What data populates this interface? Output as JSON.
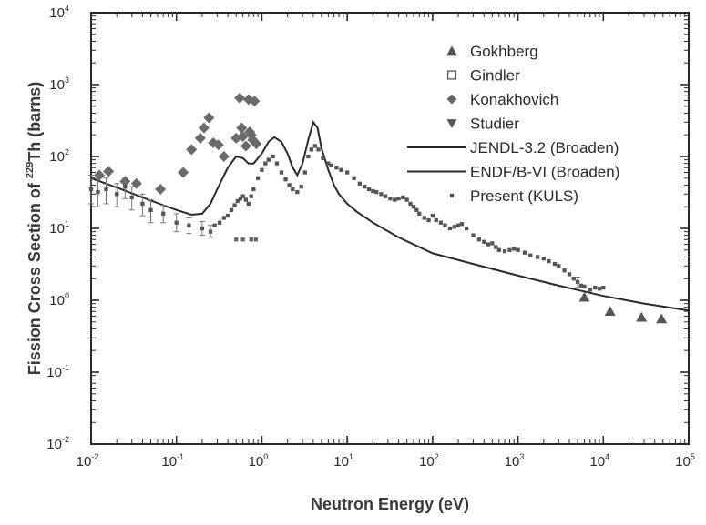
{
  "chart_data": {
    "type": "scatter",
    "xlabel": "Neutron Energy (eV)",
    "ylabel_parts": {
      "prefix": "Fission Cross Section of ",
      "superscript": "229",
      "suffix": "Th (barns)"
    },
    "xscale": "log",
    "yscale": "log",
    "xlim": [
      0.01,
      100000
    ],
    "ylim": [
      0.01,
      10000
    ],
    "x_ticks": [
      {
        "base": "10",
        "exp": "-2",
        "value": 0.01
      },
      {
        "base": "10",
        "exp": "-1",
        "value": 0.1
      },
      {
        "base": "10",
        "exp": "0",
        "value": 1
      },
      {
        "base": "10",
        "exp": "1",
        "value": 10
      },
      {
        "base": "10",
        "exp": "2",
        "value": 100
      },
      {
        "base": "10",
        "exp": "3",
        "value": 1000
      },
      {
        "base": "10",
        "exp": "4",
        "value": 10000
      },
      {
        "base": "10",
        "exp": "5",
        "value": 100000
      }
    ],
    "y_ticks": [
      {
        "base": "10",
        "exp": "-2",
        "value": 0.01
      },
      {
        "base": "10",
        "exp": "-1",
        "value": 0.1
      },
      {
        "base": "10",
        "exp": "0",
        "value": 1
      },
      {
        "base": "10",
        "exp": "1",
        "value": 10
      },
      {
        "base": "10",
        "exp": "2",
        "value": 100
      },
      {
        "base": "10",
        "exp": "3",
        "value": 1000
      },
      {
        "base": "10",
        "exp": "4",
        "value": 10000
      }
    ],
    "grid": false,
    "legend_position": "top-right",
    "series": [
      {
        "name": "Gokhberg",
        "marker": "triangle-up",
        "color": "#555555",
        "points": [
          [
            6000,
            1.1
          ],
          [
            12000,
            0.7
          ],
          [
            28000,
            0.58
          ],
          [
            48000,
            0.55
          ]
        ]
      },
      {
        "name": "Gindler",
        "marker": "square-open",
        "color": "#555555",
        "points": []
      },
      {
        "name": "Konakhovich",
        "marker": "diamond",
        "color": "#6a6a6a",
        "points": [
          [
            0.0125,
            55
          ],
          [
            0.016,
            62
          ],
          [
            0.025,
            45
          ],
          [
            0.034,
            42
          ],
          [
            0.065,
            35
          ],
          [
            0.12,
            60
          ],
          [
            0.15,
            125
          ],
          [
            0.19,
            180
          ],
          [
            0.21,
            250
          ],
          [
            0.24,
            345
          ],
          [
            0.27,
            155
          ],
          [
            0.31,
            145
          ],
          [
            0.36,
            100
          ],
          [
            0.5,
            180
          ],
          [
            0.55,
            650
          ],
          [
            0.58,
            250
          ],
          [
            0.6,
            190
          ],
          [
            0.65,
            140
          ],
          [
            0.7,
            620
          ],
          [
            0.72,
            220
          ],
          [
            0.75,
            200
          ],
          [
            0.78,
            170
          ],
          [
            0.82,
            590
          ],
          [
            0.86,
            150
          ]
        ]
      },
      {
        "name": "Studier",
        "marker": "triangle-down",
        "color": "#555555",
        "points": []
      },
      {
        "name": "Present (KULS)",
        "marker": "square-small",
        "color": "#555555",
        "points": [
          [
            0.01,
            35
          ],
          [
            0.012,
            32
          ],
          [
            0.015,
            35
          ],
          [
            0.02,
            30
          ],
          [
            0.025,
            38
          ],
          [
            0.03,
            27
          ],
          [
            0.04,
            22
          ],
          [
            0.05,
            18
          ],
          [
            0.07,
            16
          ],
          [
            0.1,
            12
          ],
          [
            0.14,
            11
          ],
          [
            0.2,
            10
          ],
          [
            0.25,
            9
          ],
          [
            0.28,
            11
          ],
          [
            0.32,
            12
          ],
          [
            0.36,
            14
          ],
          [
            0.4,
            15
          ],
          [
            0.44,
            18
          ],
          [
            0.48,
            21
          ],
          [
            0.52,
            24
          ],
          [
            0.56,
            26
          ],
          [
            0.6,
            28
          ],
          [
            0.65,
            25
          ],
          [
            0.7,
            22
          ],
          [
            0.75,
            28
          ],
          [
            0.8,
            35
          ],
          [
            0.9,
            50
          ],
          [
            1.0,
            65
          ],
          [
            1.1,
            80
          ],
          [
            1.2,
            90
          ],
          [
            1.35,
            100
          ],
          [
            1.5,
            80
          ],
          [
            1.7,
            60
          ],
          [
            1.9,
            48
          ],
          [
            2.1,
            40
          ],
          [
            2.3,
            35
          ],
          [
            2.6,
            32
          ],
          [
            2.9,
            38
          ],
          [
            3.2,
            60
          ],
          [
            3.5,
            100
          ],
          [
            3.8,
            125
          ],
          [
            4.2,
            140
          ],
          [
            4.6,
            125
          ],
          [
            5.2,
            95
          ],
          [
            6.0,
            80
          ],
          [
            6.5,
            75
          ],
          [
            7.5,
            70
          ],
          [
            8.5,
            65
          ],
          [
            10,
            60
          ],
          [
            12,
            50
          ],
          [
            14,
            42
          ],
          [
            16,
            38
          ],
          [
            18,
            35
          ],
          [
            20,
            33
          ],
          [
            22,
            32
          ],
          [
            25,
            30
          ],
          [
            28,
            28
          ],
          [
            32,
            26
          ],
          [
            36,
            25
          ],
          [
            40,
            26
          ],
          [
            45,
            27
          ],
          [
            50,
            25
          ],
          [
            55,
            22
          ],
          [
            60,
            20
          ],
          [
            65,
            18
          ],
          [
            70,
            16
          ],
          [
            80,
            14
          ],
          [
            90,
            13
          ],
          [
            100,
            15
          ],
          [
            110,
            13
          ],
          [
            125,
            12
          ],
          [
            140,
            11
          ],
          [
            160,
            10
          ],
          [
            180,
            10.5
          ],
          [
            200,
            11
          ],
          [
            220,
            11.5
          ],
          [
            250,
            10
          ],
          [
            300,
            8
          ],
          [
            350,
            7
          ],
          [
            400,
            6.5
          ],
          [
            450,
            6
          ],
          [
            500,
            6.2
          ],
          [
            550,
            5.5
          ],
          [
            600,
            5
          ],
          [
            700,
            4.8
          ],
          [
            800,
            5
          ],
          [
            900,
            5.2
          ],
          [
            1000,
            5
          ],
          [
            1200,
            4.6
          ],
          [
            1400,
            4.2
          ],
          [
            1700,
            4
          ],
          [
            2000,
            3.8
          ],
          [
            2300,
            3.5
          ],
          [
            2700,
            3.2
          ],
          [
            3000,
            3
          ],
          [
            3500,
            2.6
          ],
          [
            4000,
            2.3
          ],
          [
            4500,
            2.0
          ],
          [
            5000,
            1.8
          ],
          [
            5500,
            1.6
          ],
          [
            6000,
            1.55
          ],
          [
            7000,
            1.4
          ],
          [
            8000,
            1.5
          ],
          [
            9000,
            1.45
          ],
          [
            10000,
            1.5
          ]
        ]
      }
    ],
    "extra_points": [
      [
        0.5,
        7
      ],
      [
        0.6,
        7
      ],
      [
        0.75,
        7
      ],
      [
        0.85,
        7
      ]
    ],
    "curves": [
      {
        "name": "JENDL-3.2 (Broaden)",
        "color": "#2a2a2a",
        "points": [
          [
            0.01,
            50
          ],
          [
            0.02,
            37
          ],
          [
            0.04,
            27
          ],
          [
            0.07,
            21
          ],
          [
            0.1,
            18
          ],
          [
            0.15,
            15.5
          ],
          [
            0.2,
            16
          ],
          [
            0.25,
            22
          ],
          [
            0.3,
            35
          ],
          [
            0.4,
            70
          ],
          [
            0.5,
            100
          ],
          [
            0.6,
            95
          ],
          [
            0.7,
            80
          ],
          [
            0.8,
            80
          ],
          [
            1.0,
            110
          ],
          [
            1.2,
            160
          ],
          [
            1.4,
            185
          ],
          [
            1.7,
            160
          ],
          [
            2.0,
            110
          ],
          [
            2.3,
            70
          ],
          [
            2.6,
            55
          ],
          [
            3.0,
            80
          ],
          [
            3.5,
            170
          ],
          [
            4.0,
            300
          ],
          [
            4.5,
            250
          ],
          [
            5.0,
            130
          ],
          [
            6.0,
            65
          ],
          [
            7.0,
            40
          ],
          [
            8.0,
            30
          ],
          [
            10,
            22
          ],
          [
            13,
            17
          ],
          [
            20,
            12
          ],
          [
            40,
            7.5
          ],
          [
            100,
            4.5
          ],
          [
            300,
            3.2
          ],
          [
            1000,
            2.2
          ],
          [
            3000,
            1.6
          ],
          [
            10000,
            1.15
          ],
          [
            30000,
            0.9
          ],
          [
            100000,
            0.72
          ]
        ]
      },
      {
        "name": "ENDF/B-VI (Broaden)",
        "color": "#2a2a2a",
        "points": []
      }
    ],
    "error_bars": [
      [
        0.01,
        35,
        22,
        55
      ],
      [
        0.012,
        32,
        20,
        50
      ],
      [
        0.015,
        35,
        22,
        50
      ],
      [
        0.02,
        30,
        20,
        42
      ],
      [
        0.025,
        38,
        26,
        50
      ],
      [
        0.03,
        27,
        18,
        38
      ],
      [
        0.04,
        22,
        15,
        30
      ],
      [
        0.05,
        18,
        12,
        25
      ],
      [
        0.07,
        16,
        12,
        21
      ],
      [
        0.1,
        12,
        9,
        16
      ],
      [
        0.14,
        11,
        8.5,
        14
      ],
      [
        0.2,
        10,
        8,
        12.5
      ],
      [
        0.25,
        9,
        7.5,
        11
      ],
      [
        5000,
        1.8,
        1.5,
        2.1
      ]
    ]
  }
}
